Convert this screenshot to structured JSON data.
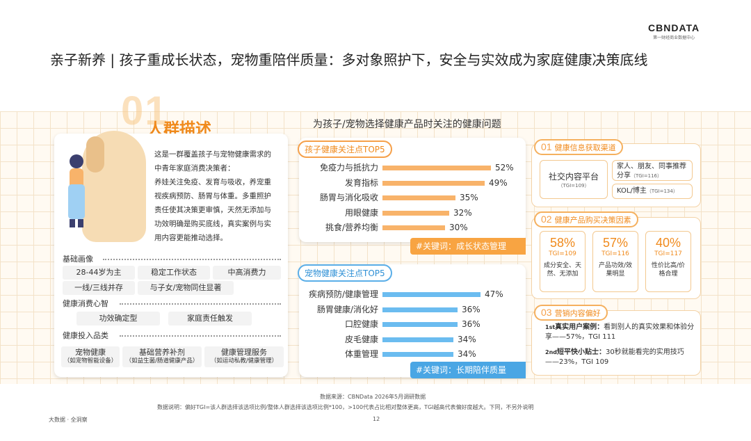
{
  "logo": {
    "name": "CBNDATA",
    "tagline": "第一财经商业数据中心"
  },
  "title": "亲子新养 | 孩子重成长状态，宠物重陪伴质量：多对象照护下，安全与实效成为家庭健康决策底线",
  "section": {
    "number": "01",
    "name": "人群描述"
  },
  "intro": [
    "这是一群覆盖孩子与宠物健康需求的",
    "中青年家庭消费决策者：",
    "养娃关注免疫、发育与吸收，养宠重",
    "视疾病预防、肠胃与体重。多重照护",
    "责任使其决策更审慎，天然无添加与",
    "功效明确是购买底线，真实案例与实",
    "用内容更能推动选择。"
  ],
  "profile": {
    "basic_header": "基础画像",
    "basic_tags": [
      "28-44岁为主",
      "稳定工作状态",
      "中高消费力",
      "一线/三线并存",
      "与子女/宠物同住显著"
    ],
    "mind_header": "健康消费心智",
    "mind_tags": [
      "功效确定型",
      "家庭责任触发"
    ],
    "invest_header": "健康投入品类",
    "invest_tags": [
      {
        "name": "宠物健康",
        "desc": "（如宠物智能设备）"
      },
      {
        "name": "基础营养补剂",
        "desc": "（如益生菌/肠道健康产品）"
      },
      {
        "name": "健康管理服务",
        "desc": "（如运动私教/健康管理）"
      }
    ]
  },
  "chart_title": "为孩子/宠物选择健康产品时关注的健康问题",
  "chart_data": [
    {
      "type": "bar",
      "title": "孩子健康关注点TOP5",
      "categories": [
        "免疫力与抵抗力",
        "发育指标",
        "肠胃与消化吸收",
        "用眼健康",
        "挑食/营养均衡"
      ],
      "values": [
        52,
        49,
        35,
        32,
        30
      ],
      "value_labels": [
        "52%",
        "49%",
        "35%",
        "32%",
        "30%"
      ],
      "color": "#f8b36a",
      "xlim": [
        0,
        60
      ]
    },
    {
      "type": "bar",
      "title": "宠物健康关注点TOP5",
      "categories": [
        "疾病预防/健康管理",
        "肠胃健康/消化好",
        "口腔健康",
        "皮毛健康",
        "体重管理"
      ],
      "values": [
        47,
        36,
        36,
        34,
        34
      ],
      "value_labels": [
        "47%",
        "36%",
        "36%",
        "34%",
        "34%"
      ],
      "color": "#6bbcf0",
      "xlim": [
        0,
        60
      ]
    }
  ],
  "keywords": {
    "child": "#关键词：成长状态管理",
    "pet": "#关键词：长期陪伴质量"
  },
  "right": {
    "info": {
      "num": "01",
      "title": "健康信息获取渠道",
      "main": "社交内容平台",
      "main_tgi": "（TGI=109）",
      "side1": "家人、朋友、同事推荐分享",
      "side1_tgi": "（TGI=116）",
      "side2": "KOL/博主",
      "side2_tgi": "（TGI=134）"
    },
    "decision": {
      "num": "02",
      "title": "健康产品购买决策因素",
      "items": [
        {
          "pct": "58%",
          "tgi": "TGI=109",
          "desc": "成分安全、天然、无添加",
          "value": 58
        },
        {
          "pct": "57%",
          "tgi": "TGI=116",
          "desc": "产品功效/效果明显",
          "value": 57
        },
        {
          "pct": "40%",
          "tgi": "TGI=117",
          "desc": "性价比高/价格合理",
          "value": 40
        }
      ]
    },
    "marketing": {
      "num": "03",
      "title": "营销内容偏好",
      "items": [
        {
          "rank": "1st",
          "label": "真实用户案例：",
          "text": "看到别人的真实效果和体验分享——57%，TGI 111"
        },
        {
          "rank": "2nd",
          "label": "短平快小贴士：",
          "text": "30秒就能看完的实用技巧——23%，TGI 109"
        }
      ]
    }
  },
  "footer": {
    "source": "数据来源：CBNData 2026年5月调研数据",
    "note": "数据说明：偏好TGI=该人群选择该选项比例/整体人群选择该选项比例*100，>100代表占比相对整体更高，TGI越高代表偏好度越大。下同，不另外说明",
    "brand": "大数据 · 全洞察",
    "page": "12"
  }
}
